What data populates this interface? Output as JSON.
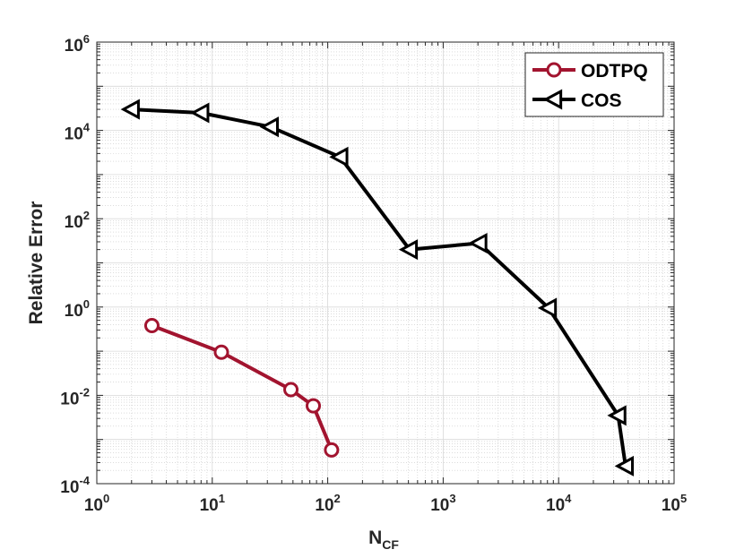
{
  "chart_data": {
    "type": "line",
    "title": "",
    "xlabel": "N",
    "xlabel_sub": "CF",
    "ylabel": "Relative Error",
    "xscale": "log",
    "yscale": "log",
    "xlim": [
      1,
      100000
    ],
    "ylim": [
      0.0001,
      1000000
    ],
    "grid": true,
    "minor_grid": true,
    "legend_position": "top-right",
    "x_ticks": [
      {
        "base": "10",
        "exp": "0",
        "value": 1
      },
      {
        "base": "10",
        "exp": "1",
        "value": 10
      },
      {
        "base": "10",
        "exp": "2",
        "value": 100
      },
      {
        "base": "10",
        "exp": "3",
        "value": 1000
      },
      {
        "base": "10",
        "exp": "4",
        "value": 10000
      },
      {
        "base": "10",
        "exp": "5",
        "value": 100000
      }
    ],
    "y_ticks": [
      {
        "base": "10",
        "exp": "-4",
        "value": 0.0001
      },
      {
        "base": "10",
        "exp": "-2",
        "value": 0.01
      },
      {
        "base": "10",
        "exp": "0",
        "value": 1
      },
      {
        "base": "10",
        "exp": "2",
        "value": 100
      },
      {
        "base": "10",
        "exp": "4",
        "value": 10000
      },
      {
        "base": "10",
        "exp": "6",
        "value": 1000000
      }
    ],
    "series": [
      {
        "name": "ODTPQ",
        "color": "#a2142f",
        "marker": "circle",
        "x": [
          3,
          12,
          48,
          75,
          108
        ],
        "y": [
          0.38,
          0.095,
          0.0135,
          0.0058,
          0.00058
        ]
      },
      {
        "name": "COS",
        "color": "#000000",
        "marker": "triangle-left",
        "x": [
          2,
          8,
          32,
          128,
          512,
          2048,
          8192,
          32768,
          38000
        ],
        "y": [
          30000,
          25000,
          12000,
          2500,
          20,
          28,
          0.95,
          0.0035,
          0.00025
        ]
      }
    ]
  }
}
